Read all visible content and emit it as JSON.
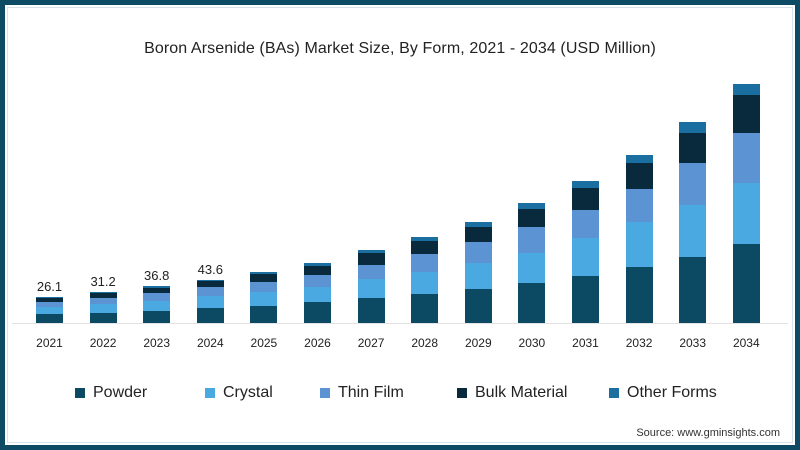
{
  "colors": {
    "powder": "#0b4a62",
    "crystal": "#4aa9e0",
    "thin_film": "#5b93d3",
    "bulk_material": "#082a3c",
    "other_forms": "#1a6fa0",
    "border": "#0d4a63"
  },
  "chart_data": {
    "type": "bar",
    "stacked": true,
    "title": "Boron Arsenide (BAs) Market Size, By Form, 2021 - 2034 (USD Million)",
    "xlabel": "",
    "ylabel": "USD Million",
    "categories": [
      "2021",
      "2022",
      "2023",
      "2024",
      "2025",
      "2026",
      "2027",
      "2028",
      "2029",
      "2030",
      "2031",
      "2032",
      "2033",
      "2034"
    ],
    "series": [
      {
        "name": "Powder",
        "values": [
          9.0,
          10.5,
          12.5,
          15.0,
          17.5,
          21,
          25,
          29,
          34,
          40,
          47,
          56,
          66,
          79
        ]
      },
      {
        "name": "Crystal",
        "values": [
          7.0,
          8.5,
          10.0,
          12.0,
          13.5,
          15,
          19,
          22,
          26,
          30,
          38,
          46,
          53,
          62
        ]
      },
      {
        "name": "Thin Film",
        "values": [
          5.0,
          6.5,
          7.5,
          8.8,
          10.5,
          12,
          14,
          18,
          21,
          26,
          29,
          33,
          42,
          50
        ]
      },
      {
        "name": "Bulk Material",
        "values": [
          4.0,
          4.5,
          5.3,
          6.2,
          7.5,
          9,
          12,
          13,
          16,
          19,
          22,
          26,
          30,
          38
        ]
      },
      {
        "name": "Other Forms",
        "values": [
          1.1,
          1.2,
          1.5,
          1.6,
          2.0,
          3,
          3,
          4,
          5,
          6,
          7,
          8,
          11,
          11
        ]
      }
    ],
    "data_labels": {
      "2021": "26.1",
      "2022": "31.2",
      "2023": "36.8",
      "2024": "43.6"
    },
    "legend_position": "bottom",
    "grid": false,
    "source": "Source: www.gminsights.com"
  },
  "legend": [
    {
      "label": "Powder",
      "key": "powder"
    },
    {
      "label": "Crystal",
      "key": "crystal"
    },
    {
      "label": "Thin Film",
      "key": "thin_film"
    },
    {
      "label": "Bulk Material",
      "key": "bulk_material"
    },
    {
      "label": "Other Forms",
      "key": "other_forms"
    }
  ]
}
